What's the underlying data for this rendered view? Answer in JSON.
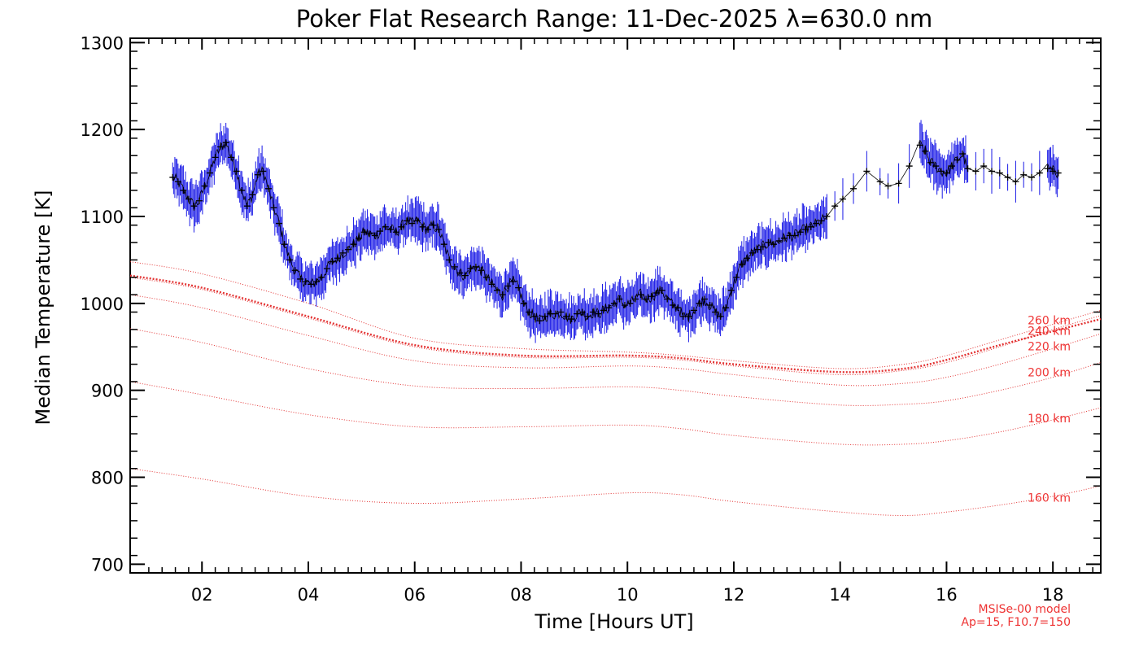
{
  "chart_data": {
    "type": "line",
    "title": "Poker Flat Research Range: 11-Dec-2025 λ=630.0 nm",
    "xlabel": "Time [Hours UT]",
    "ylabel": "Median Temperature [K]",
    "xlim": [
      0.65,
      18.9
    ],
    "ylim": [
      690,
      1305
    ],
    "xticks": [
      2,
      4,
      6,
      8,
      10,
      12,
      14,
      16,
      18
    ],
    "xtick_labels": [
      "02",
      "04",
      "06",
      "08",
      "10",
      "12",
      "14",
      "16",
      "18"
    ],
    "yticks": [
      700,
      800,
      900,
      1000,
      1100,
      1200,
      1300
    ],
    "ytick_labels": [
      "700",
      "800",
      "900",
      "1000",
      "1100",
      "1200",
      "1300"
    ],
    "grid": false,
    "measured": {
      "name": "Median temperature",
      "line_color": "#000000",
      "error_color": "#1a1ae6",
      "x": [
        1.45,
        1.55,
        1.65,
        1.75,
        1.85,
        1.95,
        2.05,
        2.15,
        2.25,
        2.35,
        2.45,
        2.55,
        2.65,
        2.75,
        2.85,
        2.95,
        3.05,
        3.15,
        3.25,
        3.35,
        3.45,
        3.55,
        3.65,
        3.75,
        3.85,
        3.95,
        4.05,
        4.15,
        4.25,
        4.35,
        4.45,
        4.55,
        4.65,
        4.75,
        4.85,
        4.95,
        5.05,
        5.15,
        5.25,
        5.35,
        5.45,
        5.55,
        5.65,
        5.75,
        5.85,
        5.95,
        6.05,
        6.15,
        6.25,
        6.35,
        6.45,
        6.55,
        6.65,
        6.75,
        6.85,
        6.95,
        7.05,
        7.15,
        7.25,
        7.35,
        7.45,
        7.55,
        7.65,
        7.75,
        7.85,
        7.95,
        8.05,
        8.15,
        8.25,
        8.35,
        8.45,
        8.55,
        8.65,
        8.75,
        8.85,
        8.95,
        9.05,
        9.15,
        9.25,
        9.35,
        9.45,
        9.55,
        9.65,
        9.75,
        9.85,
        9.95,
        10.05,
        10.15,
        10.25,
        10.35,
        10.45,
        10.55,
        10.65,
        10.75,
        10.85,
        10.95,
        11.05,
        11.15,
        11.25,
        11.35,
        11.45,
        11.55,
        11.65,
        11.75,
        11.85,
        11.95,
        12.05,
        12.15,
        12.25,
        12.35,
        12.45,
        12.55,
        12.65,
        12.75,
        12.85,
        12.95,
        13.05,
        13.15,
        13.25,
        13.35,
        13.45,
        13.55,
        13.65,
        13.75,
        13.9,
        14.05,
        14.25,
        14.5,
        14.75,
        14.9,
        15.1,
        15.3,
        15.5,
        15.6,
        15.7,
        15.8,
        15.9,
        16.0,
        16.1,
        16.2,
        16.3,
        16.4,
        16.55,
        16.7,
        16.85,
        17.0,
        17.15,
        17.3,
        17.45,
        17.6,
        17.75,
        17.9,
        18.0,
        18.1
      ],
      "y": [
        1145,
        1140,
        1130,
        1120,
        1112,
        1118,
        1135,
        1150,
        1168,
        1180,
        1185,
        1168,
        1152,
        1130,
        1112,
        1125,
        1148,
        1152,
        1132,
        1110,
        1092,
        1068,
        1050,
        1038,
        1028,
        1025,
        1022,
        1025,
        1030,
        1040,
        1048,
        1052,
        1058,
        1062,
        1068,
        1075,
        1082,
        1080,
        1078,
        1083,
        1088,
        1085,
        1082,
        1088,
        1095,
        1092,
        1095,
        1088,
        1085,
        1090,
        1085,
        1068,
        1050,
        1042,
        1035,
        1032,
        1040,
        1042,
        1038,
        1030,
        1022,
        1015,
        1010,
        1020,
        1025,
        1018,
        1000,
        990,
        985,
        980,
        985,
        988,
        988,
        990,
        985,
        982,
        988,
        990,
        985,
        990,
        988,
        992,
        995,
        1000,
        1005,
        998,
        1000,
        1005,
        1010,
        1005,
        1008,
        1012,
        1015,
        1005,
        998,
        995,
        985,
        985,
        992,
        1000,
        1005,
        998,
        990,
        985,
        995,
        1015,
        1030,
        1045,
        1052,
        1058,
        1062,
        1065,
        1070,
        1068,
        1072,
        1075,
        1078,
        1078,
        1082,
        1085,
        1088,
        1092,
        1095,
        1100,
        1112,
        1120,
        1132,
        1152,
        1140,
        1135,
        1138,
        1158,
        1182,
        1175,
        1162,
        1158,
        1152,
        1150,
        1158,
        1165,
        1172,
        1155,
        1152,
        1158,
        1152,
        1150,
        1145,
        1140,
        1148,
        1145,
        1150,
        1155,
        1152,
        1150
      ]
    },
    "model_series": [
      {
        "name": "160 km",
        "x": [
          0.65,
          2,
          4,
          6,
          8,
          10,
          11,
          12,
          14,
          15.2,
          16,
          17,
          18,
          18.9
        ],
        "values": [
          810,
          798,
          778,
          770,
          775,
          782,
          780,
          772,
          760,
          756,
          760,
          768,
          778,
          790
        ]
      },
      {
        "name": "180 km",
        "x": [
          0.65,
          2,
          4,
          6,
          8,
          10,
          11,
          12,
          14,
          15.2,
          16,
          17,
          18,
          18.9
        ],
        "values": [
          910,
          895,
          872,
          858,
          858,
          860,
          856,
          848,
          838,
          838,
          842,
          852,
          866,
          880
        ]
      },
      {
        "name": "200 km",
        "x": [
          0.65,
          2,
          4,
          6,
          8,
          10,
          11,
          12,
          14,
          15.2,
          16,
          17,
          18,
          18.9
        ],
        "values": [
          971,
          955,
          925,
          905,
          902,
          904,
          900,
          893,
          883,
          884,
          888,
          900,
          915,
          932
        ]
      },
      {
        "name": "220 km",
        "x": [
          0.65,
          2,
          4,
          6,
          8,
          10,
          11,
          12,
          14,
          15.2,
          16,
          17,
          18,
          18.9
        ],
        "values": [
          1010,
          995,
          963,
          934,
          926,
          928,
          925,
          918,
          906,
          908,
          915,
          930,
          948,
          965
        ]
      },
      {
        "name": "MSIS",
        "highlight": true,
        "x": [
          0.65,
          2,
          4,
          6,
          8,
          10,
          11,
          12,
          14,
          15.2,
          16,
          17,
          18,
          18.9
        ],
        "values": [
          1032,
          1018,
          985,
          952,
          940,
          940,
          937,
          930,
          921,
          925,
          935,
          952,
          968,
          982
        ]
      },
      {
        "name": "240 km",
        "x": [
          0.65,
          2,
          4,
          6,
          8,
          10,
          11,
          12,
          14,
          15.2,
          16,
          17,
          18,
          18.9
        ],
        "values": [
          1030,
          1016,
          983,
          950,
          938,
          938,
          935,
          928,
          918,
          923,
          932,
          950,
          970,
          986
        ]
      },
      {
        "name": "260 km",
        "x": [
          0.65,
          2,
          4,
          6,
          8,
          10,
          11,
          12,
          14,
          15.2,
          16,
          17,
          18,
          18.9
        ],
        "values": [
          1048,
          1034,
          1000,
          960,
          948,
          944,
          940,
          934,
          925,
          930,
          940,
          958,
          976,
          992
        ]
      }
    ],
    "model_labels": [
      {
        "text": "260 km",
        "at": 976
      },
      {
        "text": "240 km",
        "at": 964
      },
      {
        "text": "220 km",
        "at": 946
      },
      {
        "text": "200 km",
        "at": 916
      },
      {
        "text": "180 km",
        "at": 863
      },
      {
        "text": "160 km",
        "at": 772
      }
    ],
    "model_note": [
      "MSISe-00 model",
      "Ap=15, F10.7=150"
    ],
    "colors": {
      "model": "#e33333",
      "errorbar": "#1a1ae6",
      "line": "#000000"
    }
  }
}
